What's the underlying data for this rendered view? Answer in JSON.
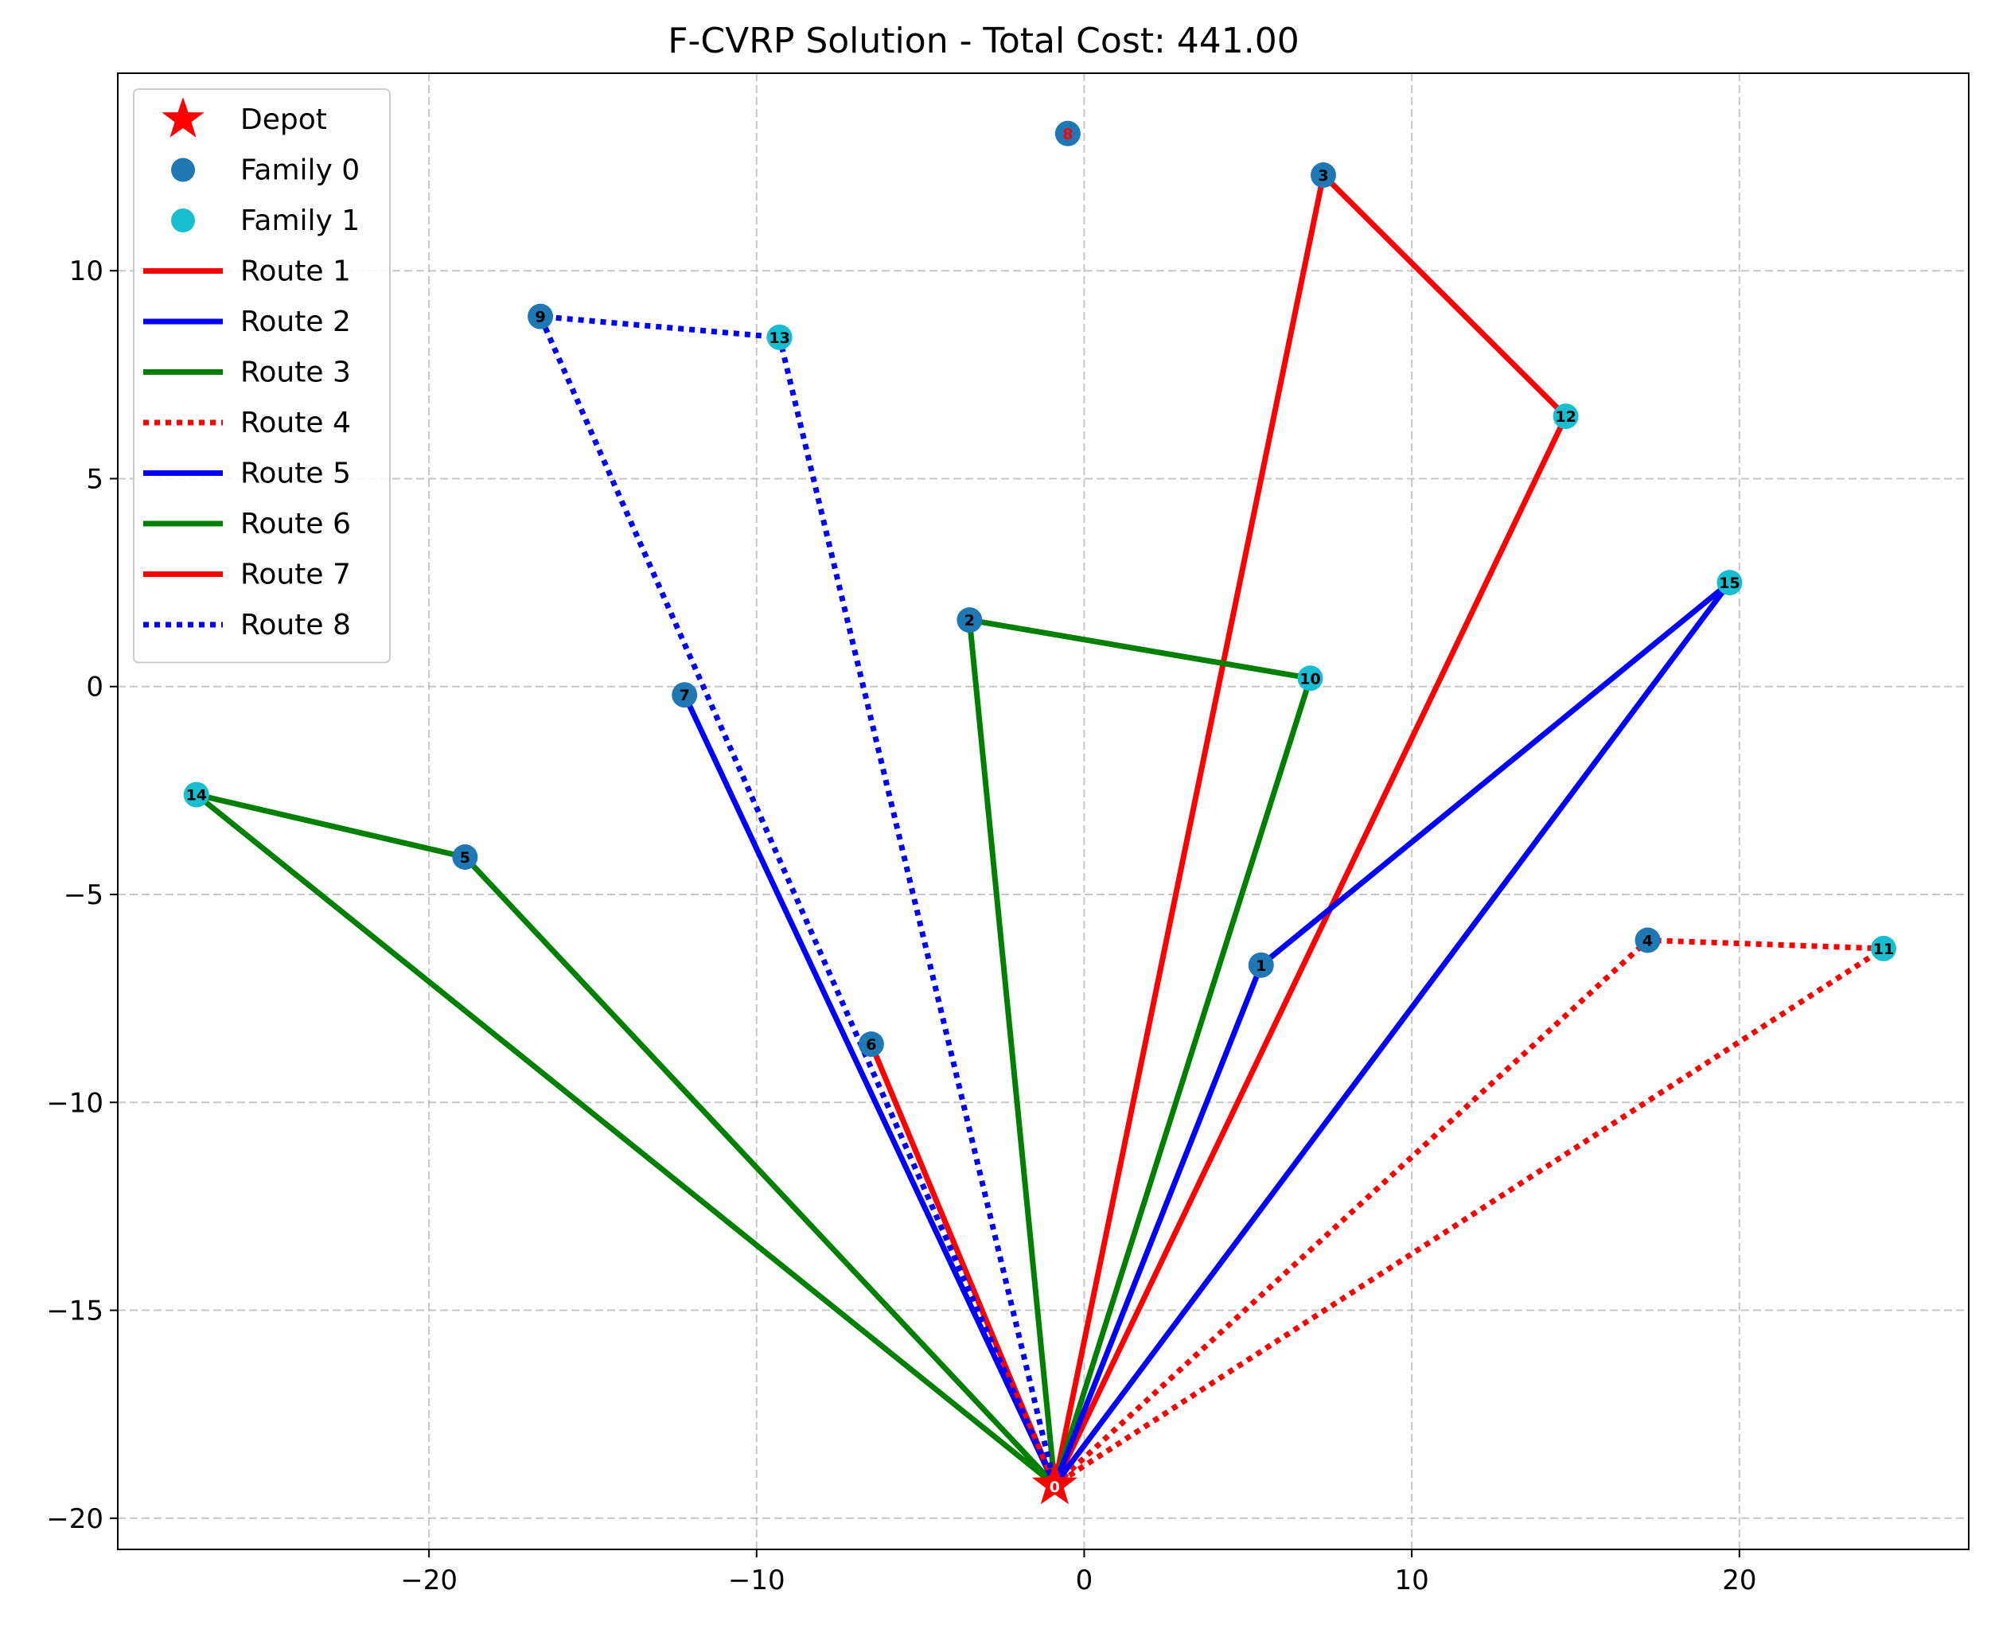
{
  "chart_data": {
    "type": "scatter",
    "title": "F-CVRP Solution - Total Cost: 441.00",
    "xlabel": "",
    "ylabel": "",
    "xlim": [
      -29.5,
      27.0
    ],
    "ylim": [
      -20.75,
      14.75
    ],
    "xticks": [
      -20,
      -10,
      0,
      10,
      20
    ],
    "xtick_labels": [
      "−20",
      "−10",
      "0",
      "10",
      "20"
    ],
    "yticks": [
      -20,
      -15,
      -10,
      -5,
      0,
      5,
      10
    ],
    "ytick_labels": [
      "−20",
      "−15",
      "−10",
      "−5",
      "0",
      "5",
      "10"
    ],
    "grid": true,
    "legend_position": "upper-left",
    "depot": {
      "id": "0",
      "x": -0.9,
      "y": -19.2,
      "color": "#ff0000",
      "legend": "Depot"
    },
    "families": [
      {
        "name": "Family 0",
        "color": "#1f77b4"
      },
      {
        "name": "Family 1",
        "color": "#17becf"
      }
    ],
    "nodes": [
      {
        "id": "1",
        "x": 5.4,
        "y": -6.7,
        "family": 0,
        "label_color": "#000000"
      },
      {
        "id": "2",
        "x": -3.5,
        "y": 1.6,
        "family": 0,
        "label_color": "#000000"
      },
      {
        "id": "3",
        "x": 7.3,
        "y": 12.3,
        "family": 0,
        "label_color": "#000000"
      },
      {
        "id": "4",
        "x": 17.2,
        "y": -6.1,
        "family": 0,
        "label_color": "#000000"
      },
      {
        "id": "5",
        "x": -18.9,
        "y": -4.1,
        "family": 0,
        "label_color": "#000000"
      },
      {
        "id": "6",
        "x": -6.5,
        "y": -8.6,
        "family": 0,
        "label_color": "#000000"
      },
      {
        "id": "7",
        "x": -12.2,
        "y": -0.2,
        "family": 0,
        "label_color": "#000000"
      },
      {
        "id": "8",
        "x": -0.5,
        "y": 13.3,
        "family": 0,
        "label_color": "#ff0000"
      },
      {
        "id": "9",
        "x": -16.6,
        "y": 8.9,
        "family": 0,
        "label_color": "#000000"
      },
      {
        "id": "10",
        "x": 6.9,
        "y": 0.2,
        "family": 1,
        "label_color": "#000000"
      },
      {
        "id": "11",
        "x": 24.4,
        "y": -6.3,
        "family": 1,
        "label_color": "#000000"
      },
      {
        "id": "12",
        "x": 14.7,
        "y": 6.5,
        "family": 1,
        "label_color": "#000000"
      },
      {
        "id": "13",
        "x": -9.3,
        "y": 8.4,
        "family": 1,
        "label_color": "#000000"
      },
      {
        "id": "14",
        "x": -27.1,
        "y": -2.6,
        "family": 1,
        "label_color": "#000000"
      },
      {
        "id": "15",
        "x": 19.7,
        "y": 2.5,
        "family": 1,
        "label_color": "#000000"
      }
    ],
    "routes": [
      {
        "name": "Route 1",
        "color": "#ff0000",
        "style": "solid",
        "path": [
          "0",
          "3",
          "12",
          "0"
        ]
      },
      {
        "name": "Route 2",
        "color": "#0000ff",
        "style": "solid",
        "path": [
          "0",
          "7",
          "0"
        ]
      },
      {
        "name": "Route 3",
        "color": "#008000",
        "style": "solid",
        "path": [
          "0",
          "2",
          "10",
          "0"
        ]
      },
      {
        "name": "Route 4",
        "color": "#ff0000",
        "style": "dotted",
        "path": [
          "0",
          "4",
          "11",
          "0"
        ]
      },
      {
        "name": "Route 5",
        "color": "#0000ff",
        "style": "solid",
        "path": [
          "0",
          "1",
          "15",
          "0"
        ]
      },
      {
        "name": "Route 6",
        "color": "#008000",
        "style": "solid",
        "path": [
          "0",
          "5",
          "14",
          "0"
        ]
      },
      {
        "name": "Route 7",
        "color": "#ff0000",
        "style": "solid",
        "path": [
          "0",
          "6",
          "0"
        ]
      },
      {
        "name": "Route 8",
        "color": "#0000ff",
        "style": "dotted",
        "path": [
          "0",
          "9",
          "13",
          "0"
        ]
      }
    ]
  }
}
